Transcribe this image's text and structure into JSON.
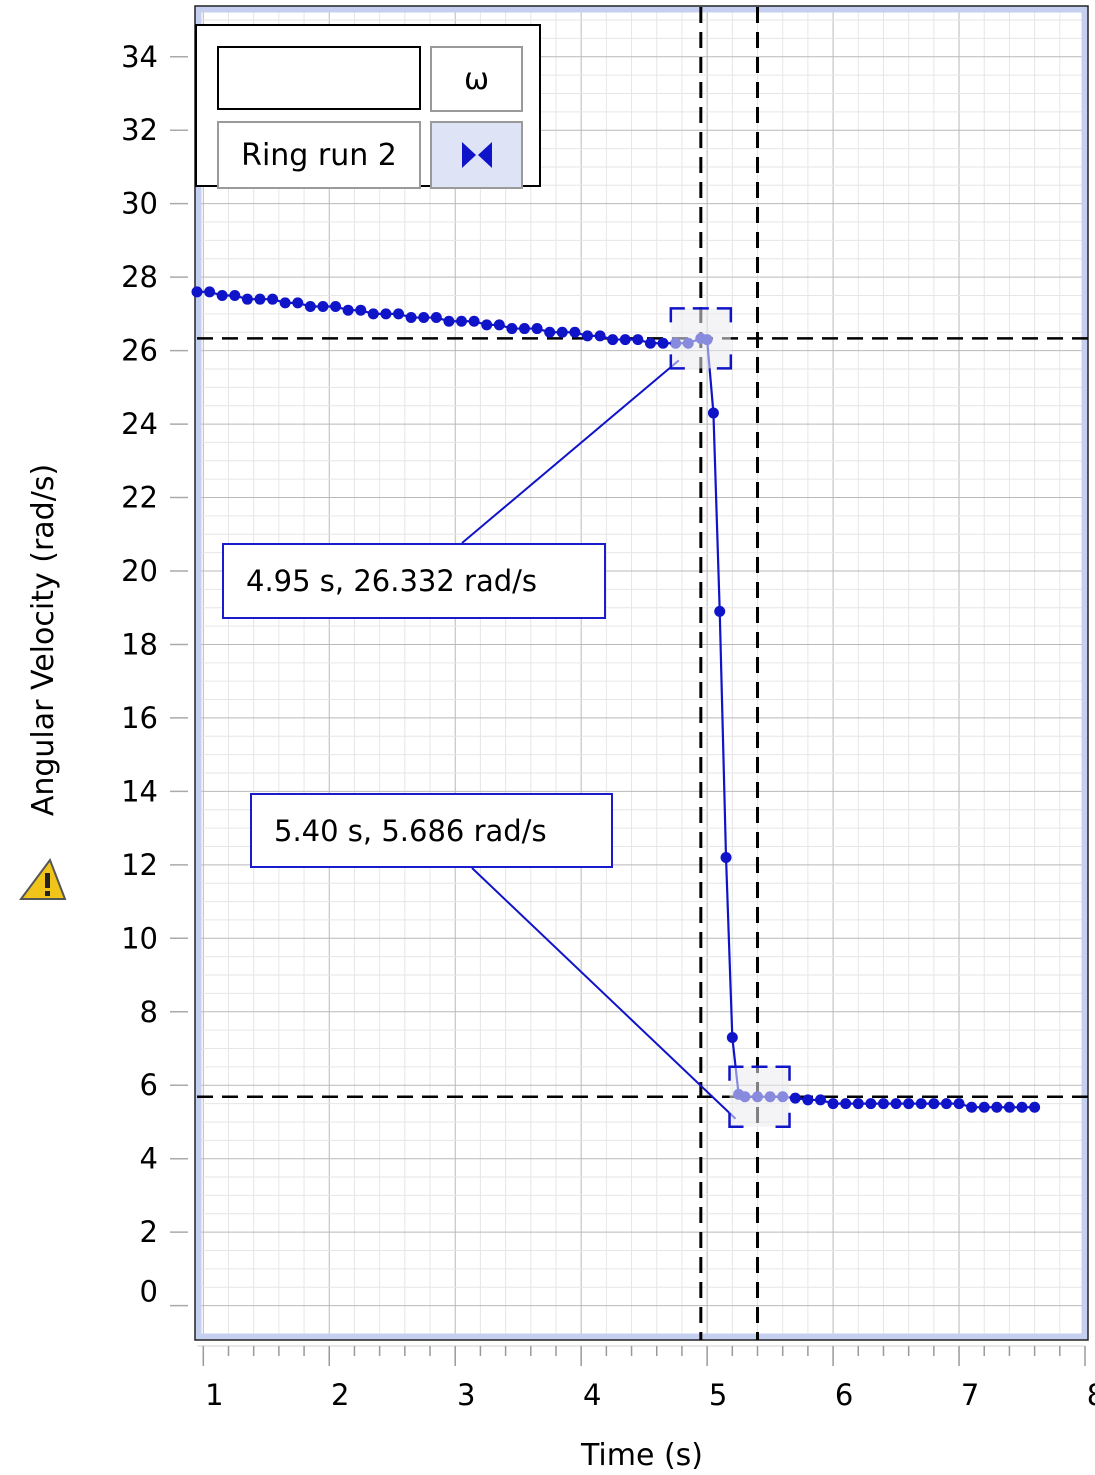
{
  "chart_data": {
    "type": "line",
    "xlabel": "Time (s)",
    "ylabel": "Angular Velocity (rad/s)",
    "xlim": [
      0.95,
      8.0
    ],
    "ylim": [
      -0.8,
      35.3
    ],
    "x_ticks": [
      "1",
      "2",
      "3",
      "4",
      "5",
      "6",
      "7",
      "8"
    ],
    "y_ticks": [
      "0",
      "2",
      "4",
      "6",
      "8",
      "10",
      "12",
      "14",
      "16",
      "18",
      "20",
      "22",
      "24",
      "26",
      "28",
      "30",
      "32",
      "34"
    ],
    "grid": true,
    "legend_position": "top-left",
    "series": [
      {
        "name": "Ring run 2",
        "color": "#1014c8",
        "x": [
          0.95,
          1.05,
          1.15,
          1.25,
          1.35,
          1.45,
          1.55,
          1.65,
          1.75,
          1.85,
          1.95,
          2.05,
          2.15,
          2.25,
          2.35,
          2.45,
          2.55,
          2.65,
          2.75,
          2.85,
          2.95,
          3.05,
          3.15,
          3.25,
          3.35,
          3.45,
          3.55,
          3.65,
          3.75,
          3.85,
          3.95,
          4.05,
          4.15,
          4.25,
          4.35,
          4.45,
          4.55,
          4.65,
          4.75,
          4.85,
          4.95,
          5.0,
          5.05,
          5.1,
          5.15,
          5.2,
          5.25,
          5.3,
          5.4,
          5.5,
          5.6,
          5.7,
          5.8,
          5.9,
          6.0,
          6.1,
          6.2,
          6.3,
          6.4,
          6.5,
          6.6,
          6.7,
          6.8,
          6.9,
          7.0,
          7.1,
          7.2,
          7.3,
          7.4,
          7.5,
          7.6
        ],
        "y": [
          27.6,
          27.6,
          27.5,
          27.5,
          27.4,
          27.4,
          27.4,
          27.3,
          27.3,
          27.2,
          27.2,
          27.2,
          27.1,
          27.1,
          27.0,
          27.0,
          27.0,
          26.9,
          26.9,
          26.9,
          26.8,
          26.8,
          26.8,
          26.7,
          26.7,
          26.6,
          26.6,
          26.6,
          26.5,
          26.5,
          26.5,
          26.4,
          26.4,
          26.3,
          26.3,
          26.3,
          26.2,
          26.2,
          26.2,
          26.2,
          26.332,
          26.3,
          24.3,
          18.9,
          12.2,
          7.3,
          5.75,
          5.686,
          5.686,
          5.686,
          5.686,
          5.65,
          5.6,
          5.6,
          5.5,
          5.5,
          5.5,
          5.5,
          5.5,
          5.5,
          5.5,
          5.5,
          5.5,
          5.5,
          5.5,
          5.4,
          5.4,
          5.4,
          5.4,
          5.4,
          5.4
        ]
      }
    ],
    "crosshairs": [
      {
        "x": 4.95,
        "y": 26.332
      },
      {
        "x": 5.4,
        "y": 5.686
      }
    ],
    "annotations": [
      {
        "text": "4.95 s, 26.332 rad/s",
        "x": 4.95,
        "y": 26.332
      },
      {
        "text": "5.40 s, 5.686 rad/s",
        "x": 5.4,
        "y": 5.686
      }
    ]
  },
  "legend": {
    "symbol_label": "ω",
    "run_label": "Ring run 2",
    "name_input_value": ""
  },
  "colors": {
    "series": "#1014c8",
    "grid_major": "#b9b9b9",
    "grid_minor": "#e6e6e6",
    "plot_border": "#c5d0f0",
    "crosshair": "#000000",
    "warning": "#f0c419"
  },
  "icons": {
    "marker_toggle": "bowtie-marker-icon",
    "warning": "warning-triangle-icon"
  }
}
